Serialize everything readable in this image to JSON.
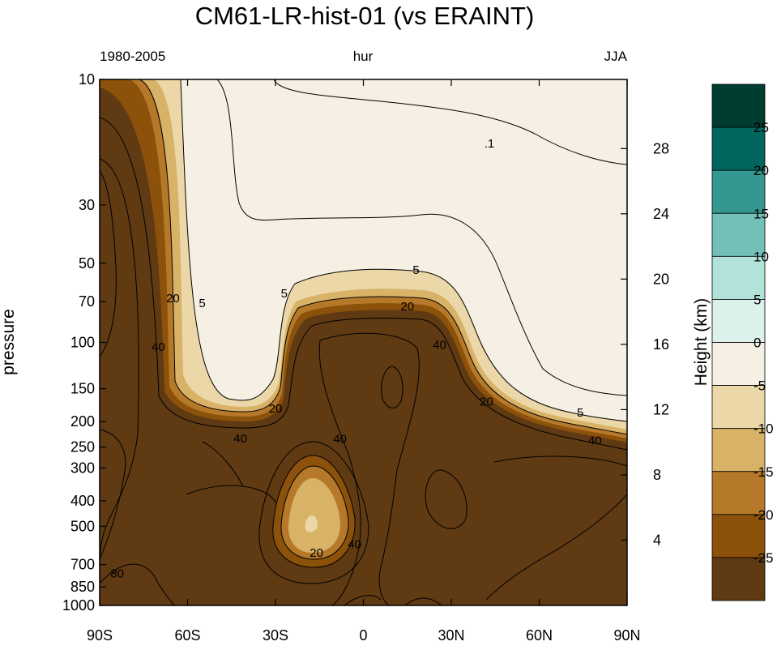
{
  "chart_data": {
    "type": "heatmap",
    "title": "CM61-LR-hist-01  (vs ERAINT)",
    "subtitle_left": "1980-2005",
    "subtitle_center": "hur",
    "subtitle_right": "JJA",
    "ylabel": "pressure",
    "y2label": "Height (km)",
    "x_ticks": [
      "90S",
      "60S",
      "30S",
      "0",
      "30N",
      "60N",
      "90N"
    ],
    "x_tick_values": [
      -90,
      -60,
      -30,
      0,
      30,
      60,
      90
    ],
    "y_ticks": [
      10,
      30,
      50,
      70,
      100,
      150,
      200,
      250,
      300,
      400,
      500,
      700,
      850,
      1000
    ],
    "y_scale": "log",
    "ylim": [
      1000,
      10
    ],
    "y2_ticks": [
      4,
      8,
      12,
      16,
      20,
      24,
      28
    ],
    "colorbar": {
      "labels": [
        "25",
        "20",
        "15",
        "10",
        "5",
        "0",
        "-5",
        "-10",
        "-15",
        "-20",
        "-25"
      ],
      "colors": [
        "#003c30",
        "#01665e",
        "#35978f",
        "#72c0b7",
        "#b1e3db",
        "#dcf0ec",
        "#f5f0e3",
        "#ebd7a7",
        "#d7b267",
        "#b6792a",
        "#8c510a",
        "#5f3a13"
      ]
    },
    "contour_labels": [
      {
        "text": ".1",
        "lat": 43,
        "p": 17.5
      },
      {
        "text": "5",
        "lat": 18,
        "p": 53
      },
      {
        "text": "5",
        "lat": -27,
        "p": 65
      },
      {
        "text": "5",
        "lat": -55,
        "p": 71
      },
      {
        "text": "20",
        "lat": -65,
        "p": 68
      },
      {
        "text": "20",
        "lat": 15,
        "p": 73
      },
      {
        "text": "40",
        "lat": -70,
        "p": 104
      },
      {
        "text": "40",
        "lat": 26,
        "p": 102
      },
      {
        "text": "20",
        "lat": 42,
        "p": 168
      },
      {
        "text": "5",
        "lat": 74,
        "p": 185
      },
      {
        "text": "20",
        "lat": -30,
        "p": 178
      },
      {
        "text": "40",
        "lat": -42,
        "p": 232
      },
      {
        "text": "40",
        "lat": -8,
        "p": 233
      },
      {
        "text": "40",
        "lat": 79,
        "p": 236
      },
      {
        "text": "20",
        "lat": -16,
        "p": 630
      },
      {
        "text": "40",
        "lat": -3,
        "p": 585
      },
      {
        "text": "80",
        "lat": -84,
        "p": 755
      }
    ]
  }
}
